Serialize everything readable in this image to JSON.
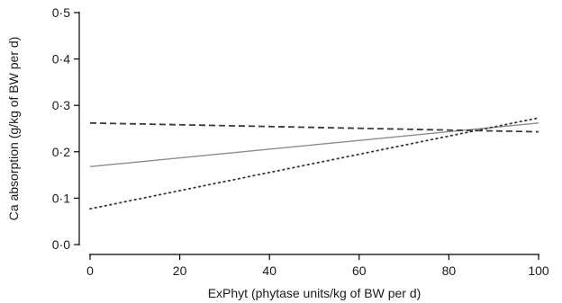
{
  "chart_data": {
    "type": "line",
    "title": "",
    "xlabel": "ExPhyt (phytase units/kg of BW per d)",
    "ylabel": "Ca absorption (g/kg of BW per d)",
    "xlim": [
      0,
      100
    ],
    "ylim": [
      0,
      0.5
    ],
    "xticks": [
      0,
      20,
      40,
      60,
      80,
      100
    ],
    "yticks": [
      0,
      0.1,
      0.2,
      0.3,
      0.4,
      0.5
    ],
    "xtick_labels": [
      "0",
      "20",
      "40",
      "60",
      "80",
      "100"
    ],
    "ytick_labels": [
      "0·0",
      "0·1",
      "0·2",
      "0·3",
      "0·4",
      "0·5"
    ],
    "grid": false,
    "legend": "none",
    "series": [
      {
        "style": "solid",
        "color": "#8c8c8c",
        "x": [
          0,
          100
        ],
        "y": [
          0.168,
          0.262
        ]
      },
      {
        "style": "dashed",
        "color": "#3a3a3a",
        "x": [
          0,
          100
        ],
        "y": [
          0.262,
          0.243
        ]
      },
      {
        "style": "dotted",
        "color": "#3a3a3a",
        "x": [
          0,
          100
        ],
        "y": [
          0.077,
          0.273
        ]
      }
    ]
  }
}
